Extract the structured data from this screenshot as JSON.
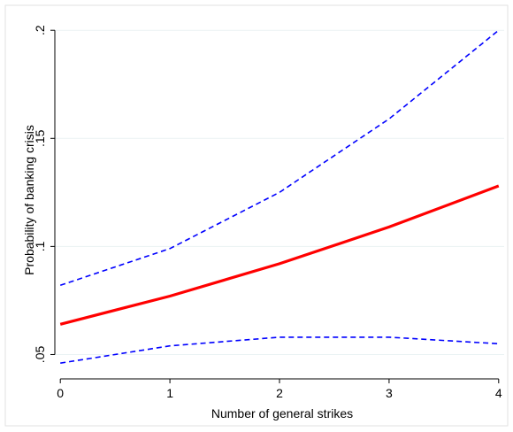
{
  "chart_data": {
    "type": "line",
    "title": "",
    "xlabel": "Number of general strikes",
    "ylabel": "Probability of banking crisis",
    "x": [
      0,
      1,
      2,
      3,
      4
    ],
    "xticks": [
      "0",
      "1",
      "2",
      "3",
      "4"
    ],
    "yticks": [
      {
        "value": 0.05,
        "label": ".05"
      },
      {
        "value": 0.1,
        "label": ".1"
      },
      {
        "value": 0.15,
        "label": ".15"
      },
      {
        "value": 0.2,
        "label": ".2"
      }
    ],
    "xlim": [
      -0.05,
      4.05
    ],
    "ylim": [
      0.042,
      0.205
    ],
    "grid": true,
    "legend": "none",
    "series": [
      {
        "role": "estimate",
        "style": "solid",
        "color": "#ff0000",
        "values": [
          0.064,
          0.077,
          0.092,
          0.109,
          0.128
        ]
      },
      {
        "role": "upper",
        "style": "dashed",
        "color": "#0000ff",
        "values": [
          0.082,
          0.099,
          0.125,
          0.159,
          0.2
        ]
      },
      {
        "role": "lower",
        "style": "dashed",
        "color": "#0000ff",
        "values": [
          0.046,
          0.054,
          0.058,
          0.058,
          0.055
        ]
      }
    ]
  },
  "colors": {
    "background": "#ffffff",
    "plot_border": "#dddddd",
    "gridline": "#eaf2f3",
    "axis": "#000000"
  }
}
